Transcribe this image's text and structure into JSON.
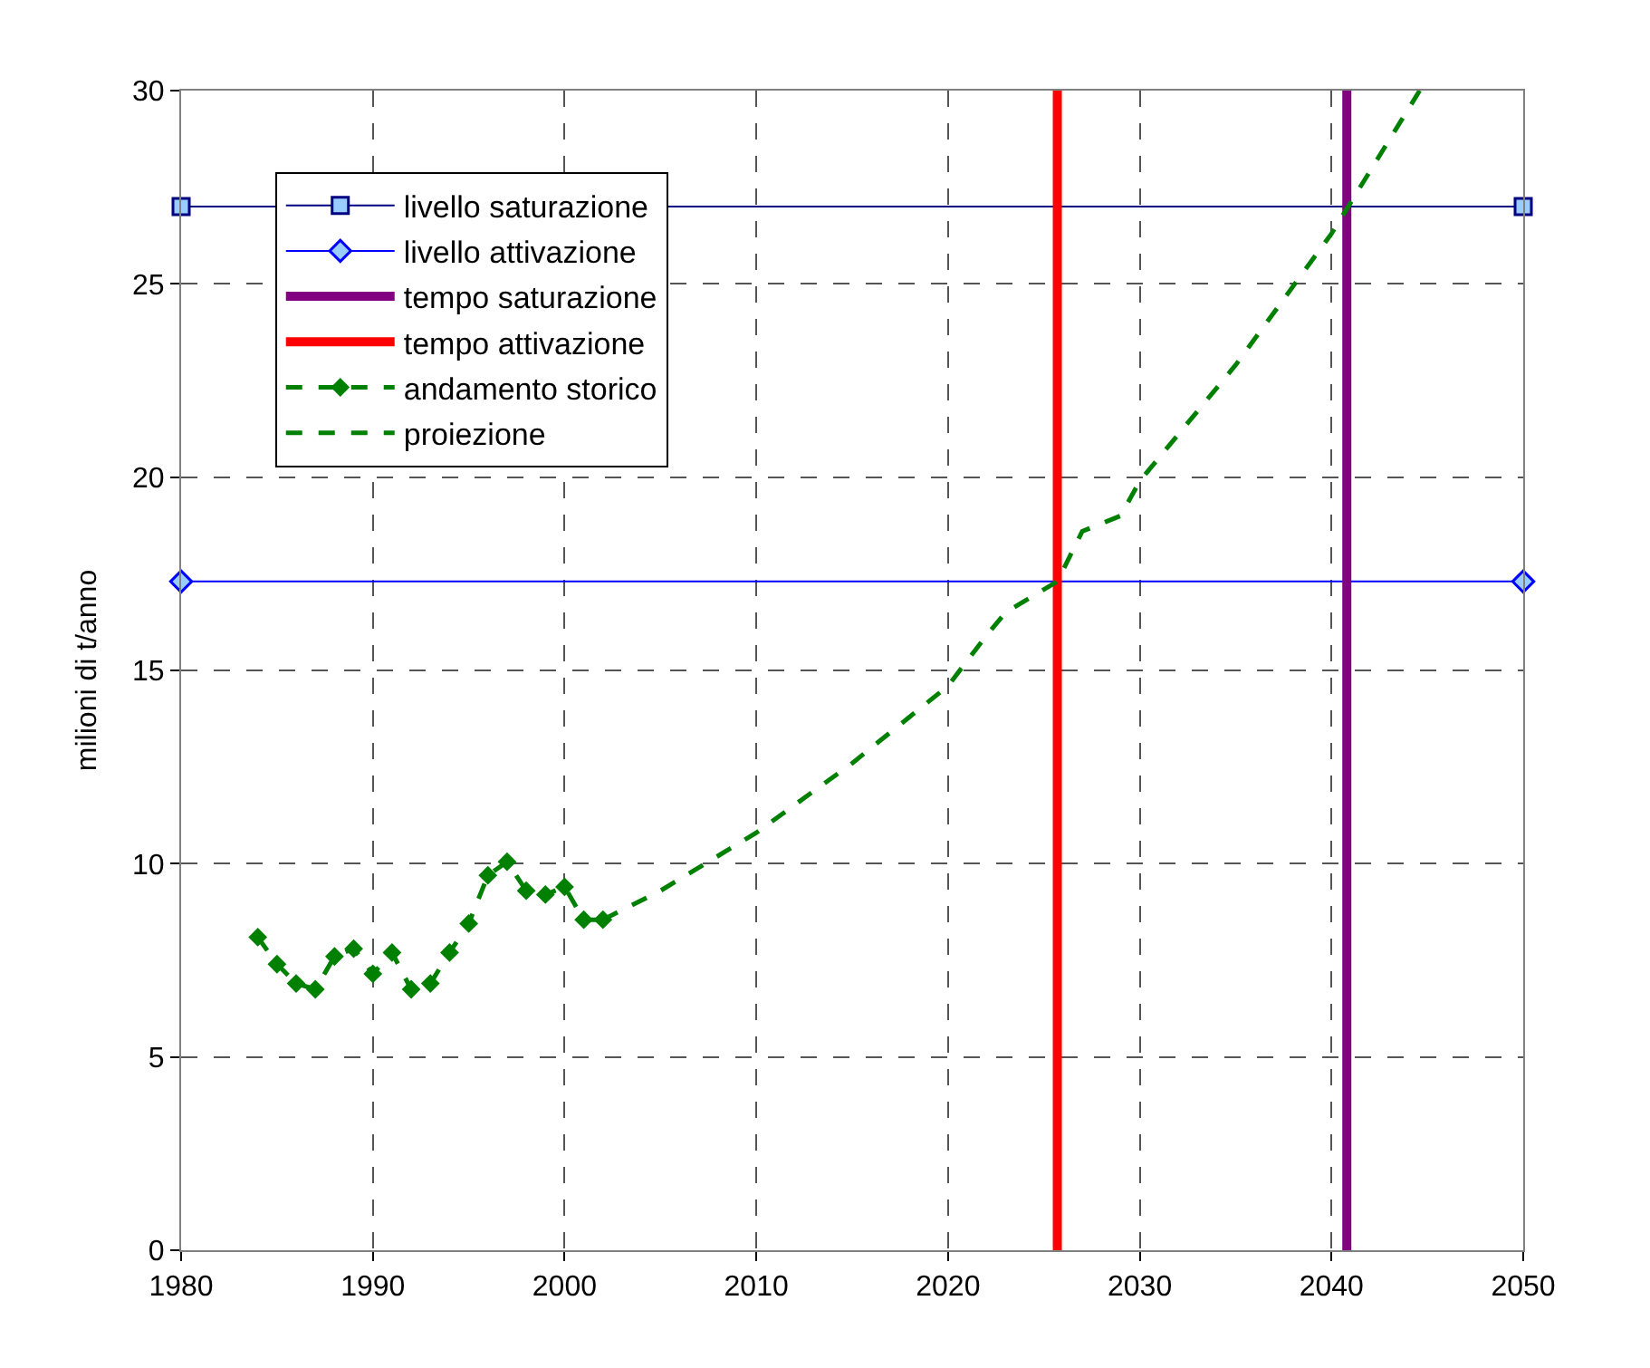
{
  "chart_data": {
    "type": "line",
    "ylabel": "milioni di t/anno",
    "xlim": [
      1980,
      2050
    ],
    "xticks": [
      1980,
      1990,
      2000,
      2010,
      2020,
      2030,
      2040,
      2050
    ],
    "ylim": [
      0,
      30
    ],
    "yticks": [
      0,
      5,
      10,
      15,
      20,
      25,
      30
    ],
    "grid": true,
    "legend": "top left",
    "series": [
      {
        "name": "livello saturazione",
        "color": "#000080",
        "marker": "square",
        "line_style": "solid",
        "x": [
          1980,
          2050
        ],
        "values": [
          27,
          27
        ]
      },
      {
        "name": "livello attivazione",
        "color": "#0000ff",
        "marker": "diamond",
        "line_style": "solid",
        "x": [
          1980,
          2050
        ],
        "values": [
          17.3,
          17.3
        ]
      },
      {
        "name": "tempo saturazione",
        "color": "#800080",
        "marker": "none",
        "line_style": "solid",
        "x": [
          2040.8,
          2040.8
        ],
        "values": [
          0,
          30
        ]
      },
      {
        "name": "tempo attivazione",
        "color": "#ff0000",
        "marker": "none",
        "line_style": "solid",
        "x": [
          2025.7,
          2025.7
        ],
        "values": [
          0,
          30
        ]
      },
      {
        "name": "andamento storico",
        "color": "#008000",
        "marker": "diamond",
        "line_style": "dashed",
        "x": [
          1984,
          1985,
          1986,
          1987,
          1988,
          1989,
          1990,
          1991,
          1992,
          1993,
          1994,
          1995,
          1996,
          1997,
          1998,
          1999,
          2000,
          2001,
          2002
        ],
        "values": [
          8.1,
          7.4,
          6.9,
          6.75,
          7.6,
          7.8,
          7.15,
          7.7,
          6.75,
          6.9,
          7.7,
          8.45,
          9.7,
          10.05,
          9.3,
          9.2,
          9.4,
          8.55,
          8.55
        ]
      },
      {
        "name": "proiezione",
        "color": "#008000",
        "marker": "none",
        "line_style": "dashed",
        "x": [
          2002,
          2005,
          2010,
          2015,
          2018,
          2020,
          2022,
          2023,
          2025.7,
          2027,
          2029,
          2030,
          2035,
          2040,
          2044.6
        ],
        "values": [
          8.55,
          9.3,
          10.8,
          12.6,
          13.8,
          14.6,
          15.9,
          16.5,
          17.3,
          18.6,
          19.0,
          19.9,
          22.9,
          26.3,
          30
        ]
      }
    ]
  }
}
